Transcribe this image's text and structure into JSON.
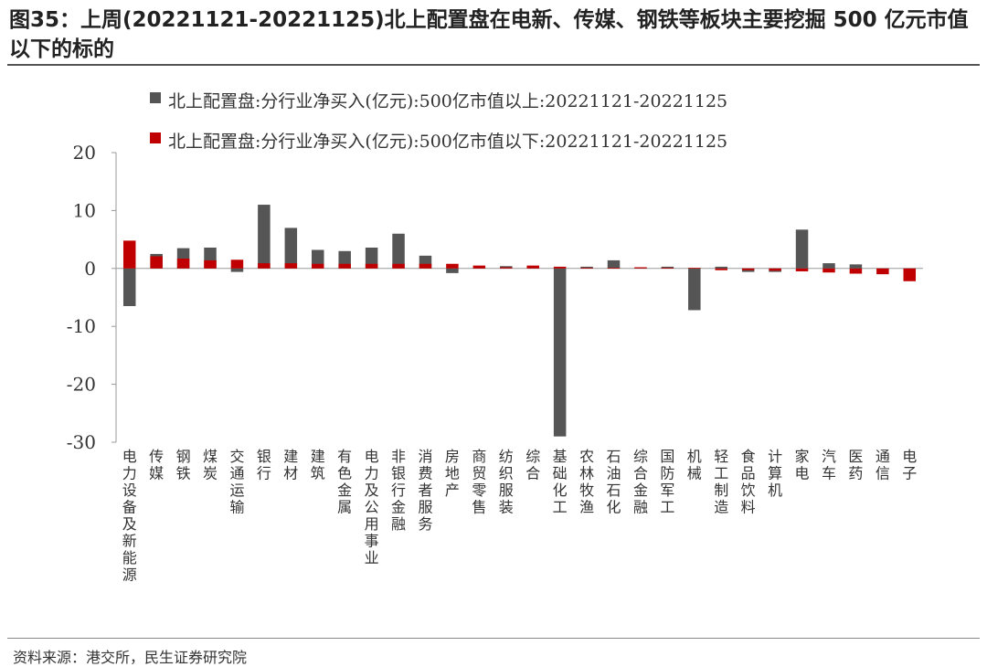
{
  "figure": {
    "title": "图35：上周(20221121-20221125)北上配置盘在电新、传媒、钢铁等板块主要挖掘 500 亿元市值以下的标的",
    "source": "资料来源：港交所，民生证券研究院"
  },
  "colors": {
    "series1": "#555555",
    "series2": "#C00000",
    "axis": "#999999",
    "text": "#333333"
  },
  "chart_data": {
    "type": "bar",
    "ylim": [
      -30,
      20
    ],
    "yticks": [
      20,
      10,
      0,
      -10,
      -20,
      -30
    ],
    "grid": false,
    "legend_position": "top",
    "categories": [
      "电力设备及新能源",
      "传媒",
      "钢铁",
      "煤炭",
      "交通运输",
      "银行",
      "建材",
      "建筑",
      "有色金属",
      "电力及公用事业",
      "非银行金融",
      "消费者服务",
      "房地产",
      "商贸零售",
      "纺织服装",
      "综合",
      "基础化工",
      "农林牧渔",
      "石油石化",
      "综合金融",
      "国防军工",
      "机械",
      "轻工制造",
      "食品饮料",
      "计算机",
      "家电",
      "汽车",
      "医药",
      "通信",
      "电子"
    ],
    "series": [
      {
        "name": "北上配置盘:分行业净买入(亿元):500亿市值以上:20221121-20221125",
        "values": [
          -6.5,
          2.5,
          3.5,
          3.6,
          -0.6,
          11,
          7,
          3.2,
          3.0,
          3.6,
          6.0,
          2.2,
          -0.8,
          0.1,
          0.4,
          0.1,
          -29,
          0.3,
          1.4,
          0.1,
          0.3,
          -7.2,
          0.3,
          -0.6,
          -0.6,
          6.7,
          0.9,
          0.7,
          -0.2,
          -0.4
        ]
      },
      {
        "name": "北上配置盘:分行业净买入(亿元):500亿市值以下:20221121-20221125",
        "values": [
          4.8,
          2.1,
          1.7,
          1.4,
          1.5,
          0.9,
          0.9,
          0.8,
          0.8,
          0.8,
          0.8,
          0.8,
          0.8,
          0.5,
          0.2,
          0.5,
          0.3,
          0.1,
          0.1,
          0.2,
          0.1,
          0.1,
          -0.3,
          -0.3,
          -0.4,
          -0.5,
          -0.7,
          -0.9,
          -1.0,
          -2.2
        ]
      }
    ]
  }
}
